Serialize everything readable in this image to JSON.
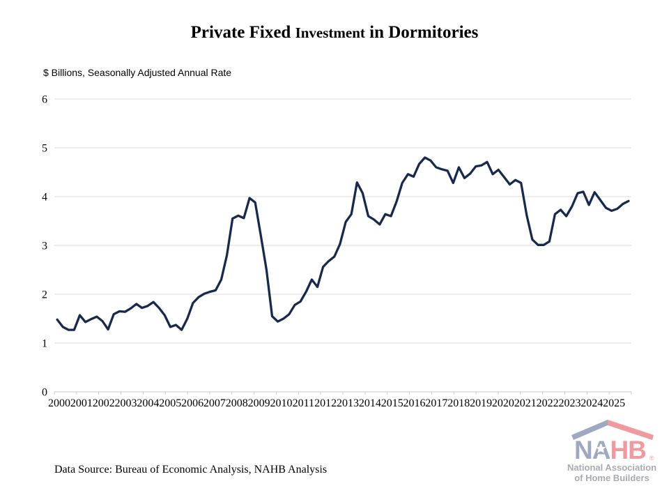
{
  "header": {
    "title_part1": "Private Fixed ",
    "title_part2": "Investment",
    "title_part3": " in Dormitories",
    "subtitle": "$ Billions, Seasonally Adjusted Annual Rate"
  },
  "footer": {
    "source_note": "Data Source: Bureau of Economic Analysis, NAHB Analysis"
  },
  "logo": {
    "na": "NA",
    "hb": "HB",
    "registered": "®",
    "line1": "National Association",
    "line2": "of Home Builders",
    "colors": {
      "blue": "#9fa8c2",
      "red": "#f09aa0",
      "gray": "#a8abae"
    }
  },
  "chart_data": {
    "type": "line",
    "title": "Private Fixed Investment in Dormitories",
    "subtitle": "$ Billions, Seasonally Adjusted Annual Rate",
    "frequency": "quarterly",
    "x_start": "2000Q1",
    "x_end": "2025Q2",
    "x_tick_labels": [
      "2000",
      "2001",
      "2002",
      "2003",
      "2004",
      "2005",
      "2006",
      "2007",
      "2008",
      "2009",
      "2010",
      "2011",
      "2012",
      "2013",
      "2014",
      "2015",
      "2016",
      "2017",
      "2018",
      "2019",
      "2020",
      "2021",
      "2022",
      "2023",
      "2024",
      "2025"
    ],
    "y_ticks": [
      0,
      1,
      2,
      3,
      4,
      5,
      6
    ],
    "ylim": [
      0,
      6
    ],
    "grid": true,
    "legend": "none",
    "line_color": "#17294f",
    "grid_color": "#d9d9d9",
    "axis_color": "#c9c9c9",
    "series": [
      {
        "name": "Private Fixed Investment in Dormitories",
        "values": [
          1.48,
          1.33,
          1.27,
          1.27,
          1.57,
          1.43,
          1.49,
          1.54,
          1.45,
          1.28,
          1.59,
          1.65,
          1.64,
          1.71,
          1.8,
          1.72,
          1.76,
          1.84,
          1.72,
          1.57,
          1.33,
          1.37,
          1.27,
          1.5,
          1.82,
          1.94,
          2.01,
          2.05,
          2.08,
          2.3,
          2.8,
          3.55,
          3.61,
          3.56,
          3.97,
          3.88,
          3.2,
          2.5,
          1.55,
          1.44,
          1.5,
          1.59,
          1.78,
          1.85,
          2.05,
          2.3,
          2.15,
          2.56,
          2.68,
          2.77,
          3.03,
          3.48,
          3.64,
          4.29,
          4.07,
          3.6,
          3.53,
          3.43,
          3.64,
          3.6,
          3.9,
          4.28,
          4.46,
          4.41,
          4.67,
          4.8,
          4.74,
          4.6,
          4.56,
          4.53,
          4.28,
          4.6,
          4.38,
          4.47,
          4.62,
          4.64,
          4.71,
          4.46,
          4.55,
          4.4,
          4.25,
          4.34,
          4.28,
          3.62,
          3.12,
          3.01,
          3.01,
          3.08,
          3.64,
          3.73,
          3.6,
          3.8,
          4.07,
          4.1,
          3.83,
          4.09,
          3.93,
          3.77,
          3.71,
          3.75,
          3.85,
          3.91
        ]
      }
    ]
  }
}
